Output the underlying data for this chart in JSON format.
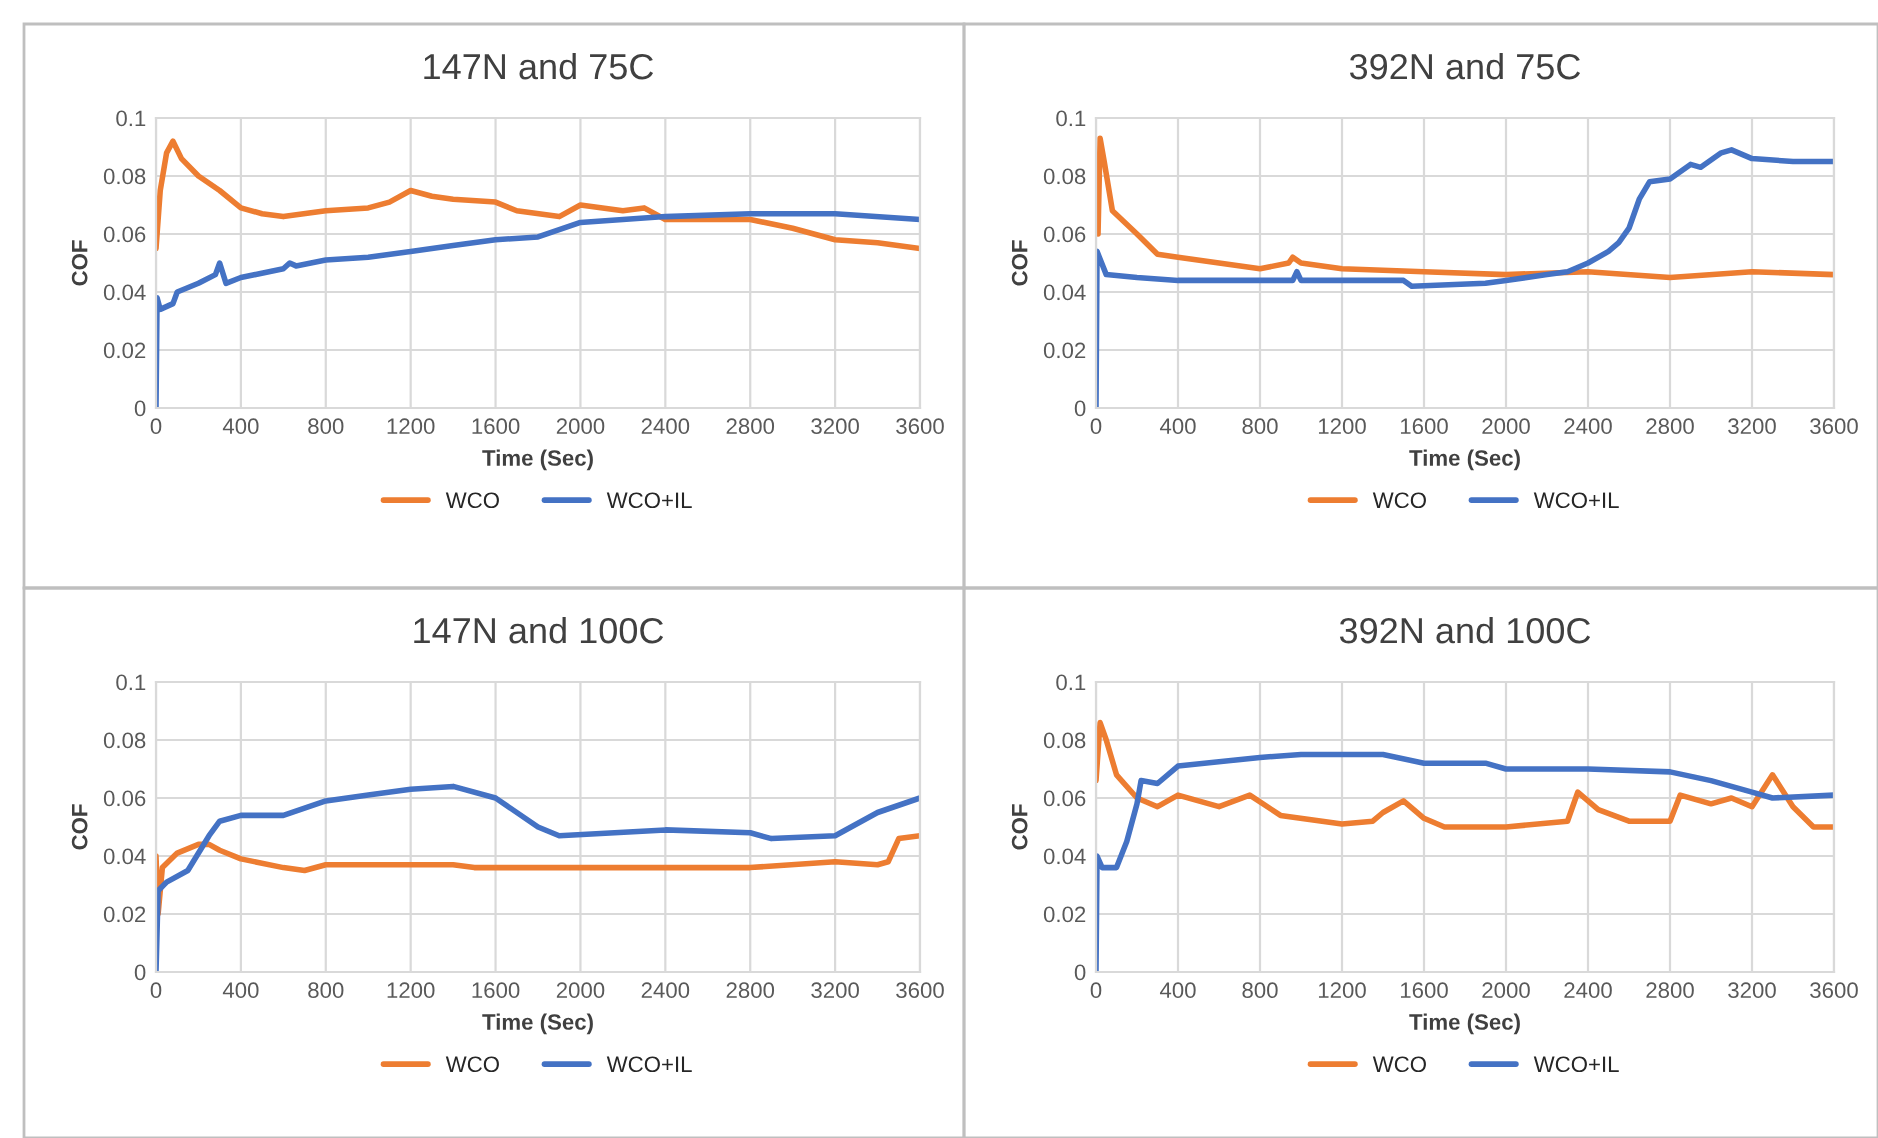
{
  "chart_data": [
    {
      "type": "line",
      "title": "147N and 75C",
      "xlabel": "Time (Sec)",
      "ylabel": "COF",
      "xlim": [
        0,
        3600
      ],
      "xticks": [
        0,
        400,
        800,
        1200,
        1600,
        2000,
        2400,
        2800,
        3200,
        3600
      ],
      "ylim": [
        0,
        0.1
      ],
      "yticks": [
        0,
        0.02,
        0.04,
        0.06,
        0.08,
        0.1
      ],
      "grid": true,
      "legend": "bottom",
      "series": [
        {
          "name": "WCO",
          "color": "#ed7d31",
          "x": [
            0,
            20,
            50,
            80,
            120,
            200,
            300,
            400,
            500,
            600,
            800,
            1000,
            1100,
            1200,
            1300,
            1400,
            1600,
            1700,
            1900,
            2000,
            2200,
            2300,
            2400,
            2600,
            2800,
            3000,
            3200,
            3400,
            3600
          ],
          "values": [
            0.055,
            0.075,
            0.088,
            0.092,
            0.086,
            0.08,
            0.075,
            0.069,
            0.067,
            0.066,
            0.068,
            0.069,
            0.071,
            0.075,
            0.073,
            0.072,
            0.071,
            0.068,
            0.066,
            0.07,
            0.068,
            0.069,
            0.065,
            0.065,
            0.065,
            0.062,
            0.058,
            0.057,
            0.055
          ]
        },
        {
          "name": "WCO+IL",
          "color": "#4472c4",
          "x": [
            0,
            5,
            20,
            80,
            100,
            200,
            280,
            300,
            330,
            400,
            600,
            630,
            660,
            800,
            1000,
            1200,
            1400,
            1600,
            1800,
            2000,
            2200,
            2400,
            2800,
            3200,
            3600
          ],
          "values": [
            0,
            0.038,
            0.034,
            0.036,
            0.04,
            0.043,
            0.046,
            0.05,
            0.043,
            0.045,
            0.048,
            0.05,
            0.049,
            0.051,
            0.052,
            0.054,
            0.056,
            0.058,
            0.059,
            0.064,
            0.065,
            0.066,
            0.067,
            0.067,
            0.065
          ]
        }
      ]
    },
    {
      "type": "line",
      "title": "392N and 75C",
      "xlabel": "Time (Sec)",
      "ylabel": "COF",
      "xlim": [
        0,
        3600
      ],
      "xticks": [
        0,
        400,
        800,
        1200,
        1600,
        2000,
        2400,
        2800,
        3200,
        3600
      ],
      "ylim": [
        0,
        0.1
      ],
      "yticks": [
        0,
        0.02,
        0.04,
        0.06,
        0.08,
        0.1
      ],
      "grid": true,
      "legend": "bottom",
      "series": [
        {
          "name": "WCO",
          "color": "#ed7d31",
          "x": [
            10,
            20,
            40,
            80,
            200,
            300,
            400,
            600,
            800,
            940,
            960,
            1000,
            1200,
            1600,
            2000,
            2400,
            2800,
            3200,
            3600
          ],
          "values": [
            0.06,
            0.093,
            0.085,
            0.068,
            0.06,
            0.053,
            0.052,
            0.05,
            0.048,
            0.05,
            0.052,
            0.05,
            0.048,
            0.047,
            0.046,
            0.047,
            0.045,
            0.047,
            0.046
          ]
        },
        {
          "name": "WCO+IL",
          "color": "#4472c4",
          "x": [
            0,
            5,
            50,
            200,
            400,
            800,
            960,
            980,
            1000,
            1500,
            1540,
            1900,
            2000,
            2200,
            2300,
            2400,
            2500,
            2550,
            2600,
            2650,
            2700,
            2800,
            2900,
            2950,
            3050,
            3100,
            3200,
            3400,
            3600
          ],
          "values": [
            0,
            0.054,
            0.046,
            0.045,
            0.044,
            0.044,
            0.044,
            0.047,
            0.044,
            0.044,
            0.042,
            0.043,
            0.044,
            0.046,
            0.047,
            0.05,
            0.054,
            0.057,
            0.062,
            0.072,
            0.078,
            0.079,
            0.084,
            0.083,
            0.088,
            0.089,
            0.086,
            0.085,
            0.085
          ]
        }
      ]
    },
    {
      "type": "line",
      "title": "147N and 100C",
      "xlabel": "Time (Sec)",
      "ylabel": "COF",
      "xlim": [
        0,
        3600
      ],
      "xticks": [
        0,
        400,
        800,
        1200,
        1600,
        2000,
        2400,
        2800,
        3200,
        3600
      ],
      "ylim": [
        0,
        0.1
      ],
      "yticks": [
        0,
        0.02,
        0.04,
        0.06,
        0.08,
        0.1
      ],
      "grid": true,
      "legend": "bottom",
      "series": [
        {
          "name": "WCO",
          "color": "#ed7d31",
          "x": [
            0,
            10,
            30,
            100,
            200,
            250,
            300,
            400,
            600,
            700,
            800,
            1000,
            1400,
            1500,
            1600,
            2000,
            2800,
            3200,
            3400,
            3450,
            3500,
            3600
          ],
          "values": [
            0.04,
            0.02,
            0.036,
            0.041,
            0.044,
            0.044,
            0.042,
            0.039,
            0.036,
            0.035,
            0.037,
            0.037,
            0.037,
            0.036,
            0.036,
            0.036,
            0.036,
            0.038,
            0.037,
            0.038,
            0.046,
            0.047
          ]
        },
        {
          "name": "WCO+IL",
          "color": "#4472c4",
          "x": [
            0,
            10,
            50,
            150,
            250,
            300,
            400,
            600,
            800,
            1000,
            1200,
            1400,
            1600,
            1800,
            1900,
            2400,
            2800,
            2900,
            3200,
            3400,
            3600
          ],
          "values": [
            0,
            0.028,
            0.031,
            0.035,
            0.047,
            0.052,
            0.054,
            0.054,
            0.059,
            0.061,
            0.063,
            0.064,
            0.06,
            0.05,
            0.047,
            0.049,
            0.048,
            0.046,
            0.047,
            0.055,
            0.06
          ]
        }
      ]
    },
    {
      "type": "line",
      "title": "392N and 100C",
      "xlabel": "Time (Sec)",
      "ylabel": "COF",
      "xlim": [
        0,
        3600
      ],
      "xticks": [
        0,
        400,
        800,
        1200,
        1600,
        2000,
        2400,
        2800,
        3200,
        3600
      ],
      "ylim": [
        0,
        0.1
      ],
      "yticks": [
        0,
        0.02,
        0.04,
        0.06,
        0.08,
        0.1
      ],
      "grid": true,
      "legend": "bottom",
      "series": [
        {
          "name": "WCO",
          "color": "#ed7d31",
          "x": [
            0,
            20,
            50,
            100,
            200,
            300,
            400,
            600,
            750,
            900,
            1200,
            1350,
            1400,
            1500,
            1600,
            1700,
            2000,
            2300,
            2350,
            2450,
            2600,
            2800,
            2850,
            3000,
            3100,
            3200,
            3300,
            3400,
            3500,
            3600
          ],
          "values": [
            0.066,
            0.086,
            0.08,
            0.068,
            0.06,
            0.057,
            0.061,
            0.057,
            0.061,
            0.054,
            0.051,
            0.052,
            0.055,
            0.059,
            0.053,
            0.05,
            0.05,
            0.052,
            0.062,
            0.056,
            0.052,
            0.052,
            0.061,
            0.058,
            0.06,
            0.057,
            0.068,
            0.057,
            0.05,
            0.05
          ]
        },
        {
          "name": "WCO+IL",
          "color": "#4472c4",
          "x": [
            0,
            5,
            30,
            100,
            150,
            200,
            220,
            300,
            400,
            800,
            1000,
            1400,
            1600,
            1900,
            2000,
            2400,
            2800,
            3000,
            3200,
            3300,
            3600
          ],
          "values": [
            0,
            0.04,
            0.036,
            0.036,
            0.045,
            0.058,
            0.066,
            0.065,
            0.071,
            0.074,
            0.075,
            0.075,
            0.072,
            0.072,
            0.07,
            0.07,
            0.069,
            0.066,
            0.062,
            0.06,
            0.061
          ]
        }
      ]
    }
  ]
}
